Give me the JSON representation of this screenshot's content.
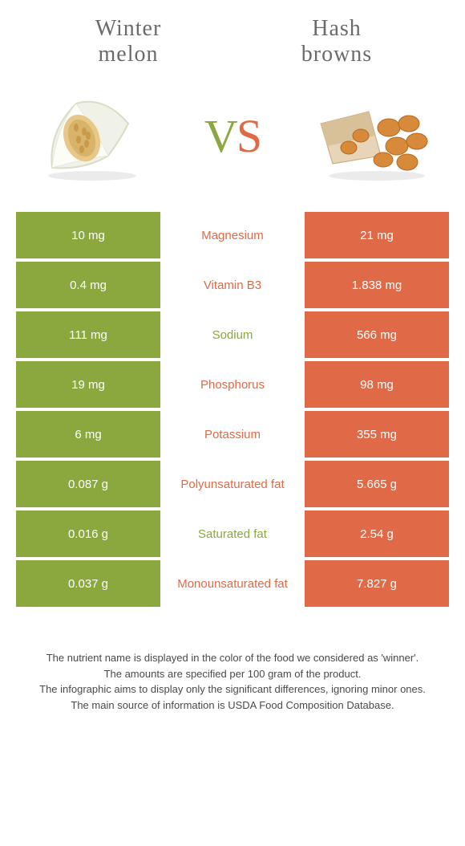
{
  "header": {
    "left_title_l1": "Winter",
    "left_title_l2": "melon",
    "right_title_l1": "Hash",
    "right_title_l2": "browns"
  },
  "vs": {
    "v": "V",
    "s": "S"
  },
  "colors": {
    "green": "#8aa83e",
    "orange": "#e06a47",
    "bg": "#ffffff"
  },
  "rows": [
    {
      "left": "10 mg",
      "label": "Magnesium",
      "right": "21 mg",
      "winner": "orange"
    },
    {
      "left": "0.4 mg",
      "label": "Vitamin B3",
      "right": "1.838 mg",
      "winner": "orange"
    },
    {
      "left": "111 mg",
      "label": "Sodium",
      "right": "566 mg",
      "winner": "green"
    },
    {
      "left": "19 mg",
      "label": "Phosphorus",
      "right": "98 mg",
      "winner": "orange"
    },
    {
      "left": "6 mg",
      "label": "Potassium",
      "right": "355 mg",
      "winner": "orange"
    },
    {
      "left": "0.087 g",
      "label": "Polyunsaturated fat",
      "right": "5.665 g",
      "winner": "orange"
    },
    {
      "left": "0.016 g",
      "label": "Saturated fat",
      "right": "2.54 g",
      "winner": "green"
    },
    {
      "left": "0.037 g",
      "label": "Monounsaturated fat",
      "right": "7.827 g",
      "winner": "orange"
    }
  ],
  "footnotes": {
    "l1": "The nutrient name is displayed in the color of the food we considered as 'winner'.",
    "l2": "The amounts are specified per 100 gram of the product.",
    "l3": "The infographic aims to display only the significant differences, ignoring minor ones.",
    "l4": "The main source of information is USDA Food Composition Database."
  }
}
